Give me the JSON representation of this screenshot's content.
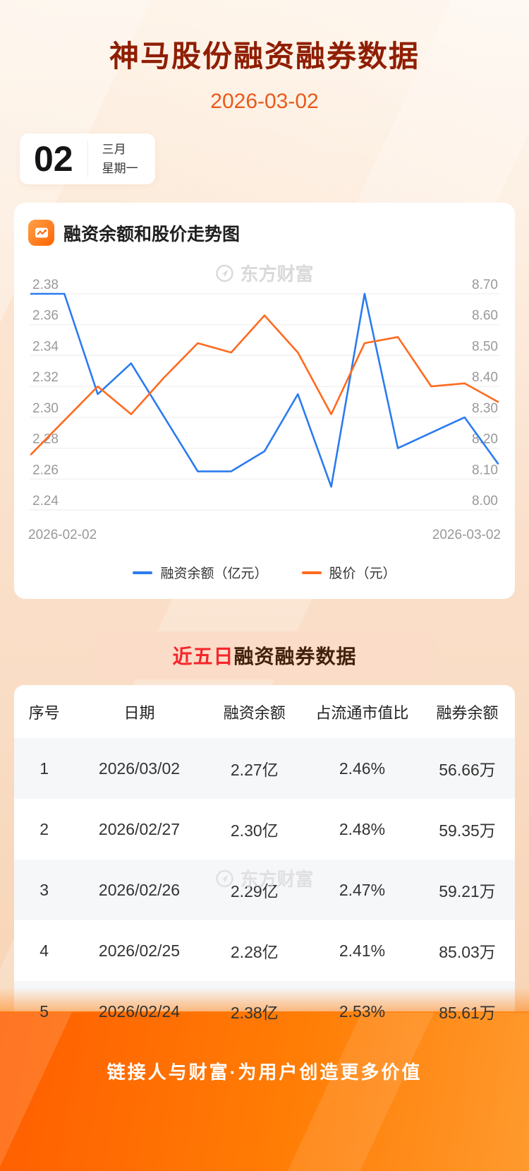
{
  "page": {
    "title": "神马股份融资融券数据",
    "date": "2026-03-02",
    "footer": "链接人与财富·为用户创造更多价值"
  },
  "date_card": {
    "day": "02",
    "month": "三月",
    "weekday": "星期一"
  },
  "chart_section": {
    "title": "融资余额和股价走势图",
    "watermark": "东方财富"
  },
  "chart_data": {
    "type": "line",
    "title": "融资余额和股价走势图",
    "x_labels": [
      "2026-02-02",
      "2026-03-02"
    ],
    "grid": true,
    "legend_position": "bottom",
    "left_axis": {
      "label": "融资余额（亿元）",
      "min": 2.24,
      "max": 2.38,
      "ticks": [
        2.38,
        2.36,
        2.34,
        2.32,
        2.3,
        2.28,
        2.26,
        2.24
      ]
    },
    "right_axis": {
      "label": "股价（元）",
      "min": 8.0,
      "max": 8.7,
      "ticks": [
        8.7,
        8.6,
        8.5,
        8.4,
        8.3,
        8.2,
        8.1,
        8.0
      ]
    },
    "series": [
      {
        "name": "融资余额（亿元）",
        "axis": "left",
        "color": "#2b7bf0",
        "values": [
          2.38,
          2.38,
          2.315,
          2.335,
          2.3,
          2.265,
          2.265,
          2.278,
          2.315,
          2.255,
          2.38,
          2.28,
          2.29,
          2.3,
          2.27
        ]
      },
      {
        "name": "股价（元）",
        "axis": "right",
        "color": "#ff6a1f",
        "values": [
          8.18,
          8.29,
          8.4,
          8.31,
          8.43,
          8.54,
          8.51,
          8.63,
          8.51,
          8.31,
          8.54,
          8.56,
          8.4,
          8.41,
          8.35
        ]
      }
    ]
  },
  "table_section": {
    "title_highlight": "近五日",
    "title_rest": "融资融券数据",
    "watermark": "东方财富",
    "headers": [
      "序号",
      "日期",
      "融资余额",
      "占流通市值比",
      "融券余额"
    ],
    "rows": [
      [
        "1",
        "2026/03/02",
        "2.27亿",
        "2.46%",
        "56.66万"
      ],
      [
        "2",
        "2026/02/27",
        "2.30亿",
        "2.48%",
        "59.35万"
      ],
      [
        "3",
        "2026/02/26",
        "2.29亿",
        "2.47%",
        "59.21万"
      ],
      [
        "4",
        "2026/02/25",
        "2.28亿",
        "2.41%",
        "85.03万"
      ],
      [
        "5",
        "2026/02/24",
        "2.38亿",
        "2.53%",
        "85.61万"
      ]
    ]
  }
}
